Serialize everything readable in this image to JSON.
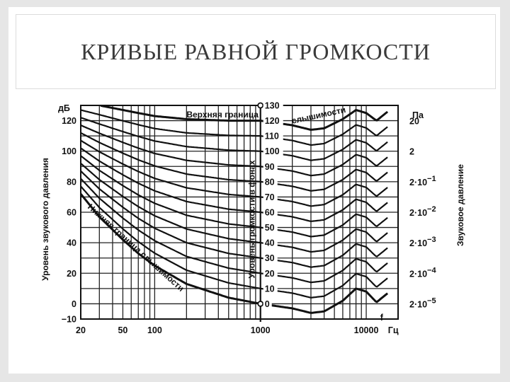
{
  "slide": {
    "title": "КРИВЫЕ РАВНОЙ ГРОМКОСТИ"
  },
  "chart_data": {
    "type": "line",
    "x_scale": "log",
    "xlim": [
      20,
      20000
    ],
    "ylim": [
      -10,
      130
    ],
    "xlabel": "Гц",
    "ylabel_left_unit": "дБ",
    "ylabel_left": "Уровень звукового давления",
    "ylabel_right_unit": "Па",
    "ylabel_right": "Звуковое давление",
    "x_tick_labels": [
      {
        "x": 20,
        "label": "20"
      },
      {
        "x": 50,
        "label": "50"
      },
      {
        "x": 100,
        "label": "100"
      },
      {
        "x": 1000,
        "label": "1000"
      },
      {
        "x": 10000,
        "label": "10000"
      }
    ],
    "f_label": "f",
    "y_tick_labels": [
      {
        "y": 120,
        "label": "120"
      },
      {
        "y": 100,
        "label": "100"
      },
      {
        "y": 80,
        "label": "80"
      },
      {
        "y": 60,
        "label": "60"
      },
      {
        "y": 40,
        "label": "40"
      },
      {
        "y": 20,
        "label": "20"
      },
      {
        "y": 0,
        "label": "0"
      },
      {
        "y": -10,
        "label": "−10"
      }
    ],
    "right_axis_labels": [
      {
        "y": 120,
        "label": "20"
      },
      {
        "y": 100,
        "label": "2"
      },
      {
        "y": 80,
        "label": "2·10",
        "exp": "−1"
      },
      {
        "y": 60,
        "label": "2·10",
        "exp": "−2"
      },
      {
        "y": 40,
        "label": "2·10",
        "exp": "−3"
      },
      {
        "y": 20,
        "label": "2·10",
        "exp": "−4"
      },
      {
        "y": 0,
        "label": "2·10",
        "exp": "−5"
      }
    ],
    "phon_axis_label": "Уровень громкости в фонах",
    "phon_labels": [
      "130",
      "120",
      "110",
      "100",
      "90",
      "80",
      "70",
      "60",
      "50",
      "40",
      "30",
      "20",
      "10",
      "0"
    ],
    "phon_levels": [
      120,
      110,
      100,
      90,
      80,
      70,
      60,
      50,
      40,
      30,
      20,
      10,
      0
    ],
    "annotations": {
      "upper_bound": "Верхняя граница",
      "upper_bound_2": "слышимости",
      "lower_bound": "Нижняя граница слышимости"
    },
    "contour_reference_offsets_db": {
      "x": [
        20,
        30,
        50,
        70,
        100,
        200,
        500,
        1000,
        2000,
        3000,
        4000,
        6000,
        8000,
        10000,
        12500,
        16000
      ],
      "low_level_offset": [
        72,
        57,
        42,
        33,
        25,
        13,
        4,
        0,
        -3,
        -6,
        -5,
        2,
        10,
        8,
        1,
        7
      ],
      "high_level_offset": [
        12,
        10,
        7,
        5,
        3,
        1,
        0,
        0,
        -3,
        -6,
        -5,
        1,
        7,
        5,
        0,
        6
      ]
    }
  }
}
